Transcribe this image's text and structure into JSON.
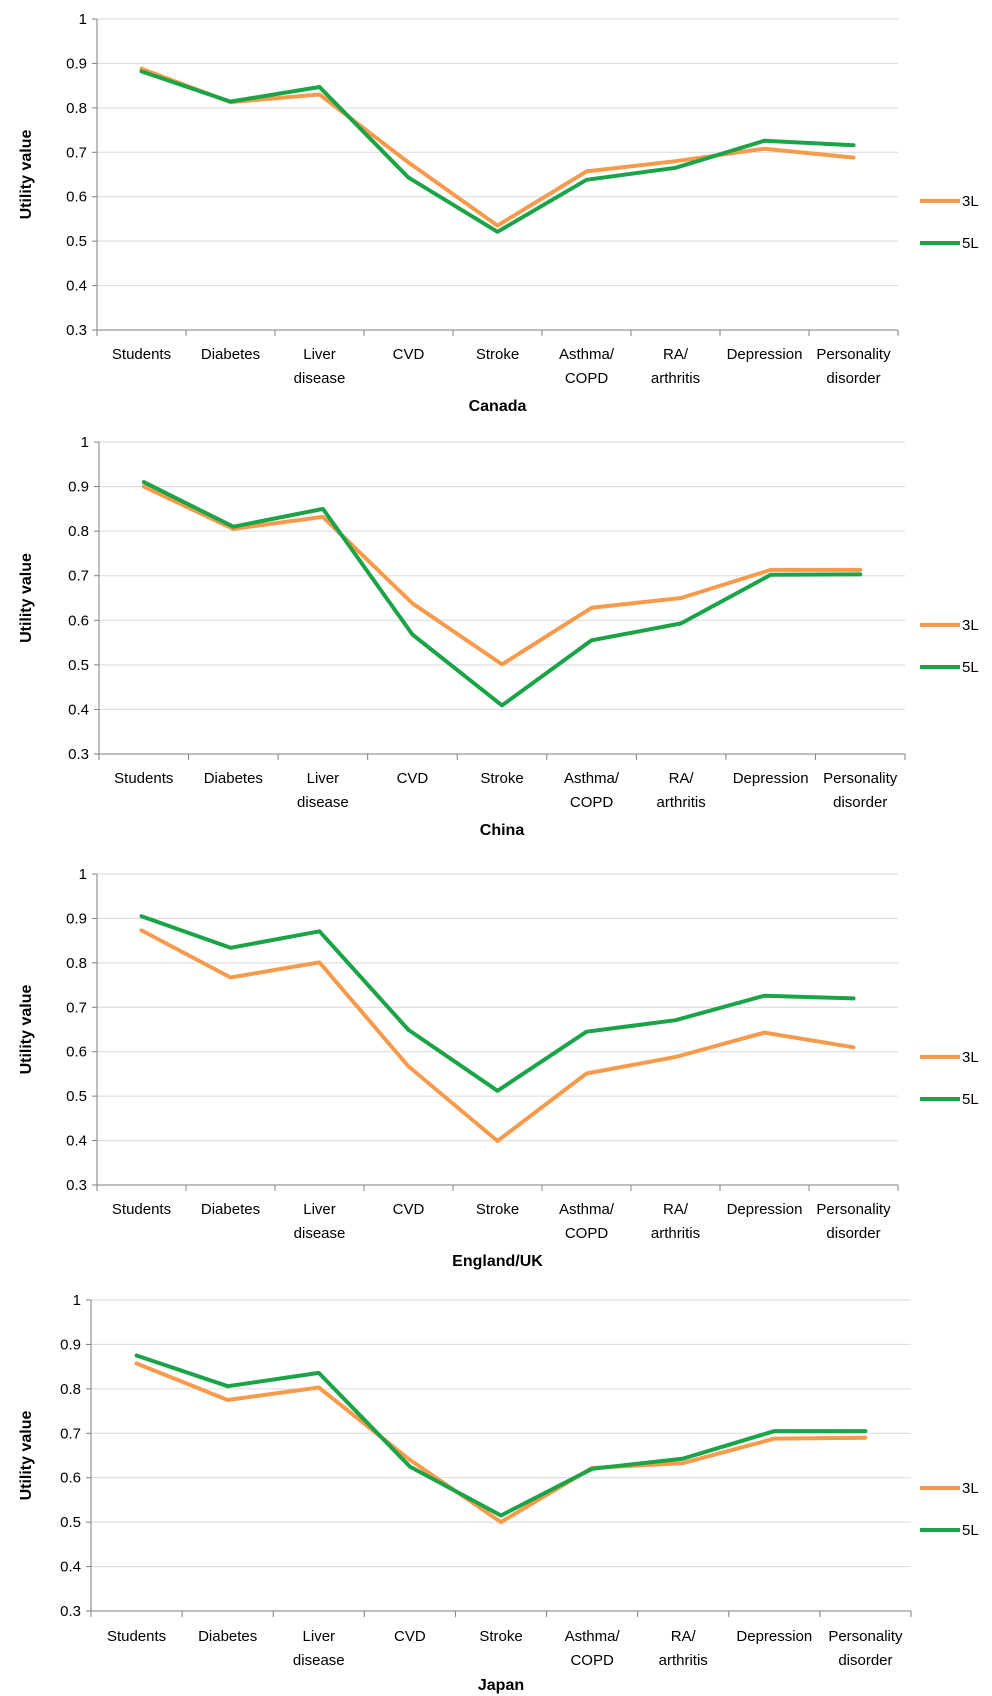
{
  "colors": {
    "3L": "#f79a4b",
    "5L": "#1aa447",
    "grid": "#d9d9d9",
    "axis": "#7f7f7f"
  },
  "chart_data": [
    {
      "type": "line",
      "title": "",
      "xlabel": "Canada",
      "ylabel": "Utility value",
      "categories": [
        [
          "Students"
        ],
        [
          "Diabetes"
        ],
        [
          "Liver",
          "disease"
        ],
        [
          "CVD"
        ],
        [
          "Stroke"
        ],
        [
          "Asthma/",
          "COPD"
        ],
        [
          "RA/",
          "arthritis"
        ],
        [
          "Depression"
        ],
        [
          "Personality",
          "disorder"
        ]
      ],
      "ylim": [
        0.3,
        1
      ],
      "yticks": [
        "0.3",
        "0.4",
        "0.5",
        "0.6",
        "0.7",
        "0.8",
        "0.9",
        "1"
      ],
      "grid": true,
      "legend": "right",
      "series": [
        {
          "name": "3L",
          "values": [
            0.888,
            0.813,
            0.83,
            0.677,
            0.535,
            0.657,
            0.68,
            0.708,
            0.688
          ]
        },
        {
          "name": "5L",
          "values": [
            0.882,
            0.814,
            0.847,
            0.643,
            0.521,
            0.638,
            0.665,
            0.726,
            0.716
          ]
        }
      ]
    },
    {
      "type": "line",
      "title": "",
      "xlabel": "China",
      "ylabel": "Utility value",
      "categories": [
        [
          "Students"
        ],
        [
          "Diabetes"
        ],
        [
          "Liver",
          "disease"
        ],
        [
          "CVD"
        ],
        [
          "Stroke"
        ],
        [
          "Asthma/",
          "COPD"
        ],
        [
          "RA/",
          "arthritis"
        ],
        [
          "Depression"
        ],
        [
          "Personality",
          "disorder"
        ]
      ],
      "ylim": [
        0.3,
        1
      ],
      "yticks": [
        "0.3",
        "0.4",
        "0.5",
        "0.6",
        "0.7",
        "0.8",
        "0.9",
        "1"
      ],
      "grid": true,
      "legend": "right",
      "series": [
        {
          "name": "3L",
          "values": [
            0.9,
            0.805,
            0.832,
            0.638,
            0.501,
            0.628,
            0.65,
            0.713,
            0.713
          ]
        },
        {
          "name": "5L",
          "values": [
            0.91,
            0.81,
            0.85,
            0.568,
            0.409,
            0.555,
            0.593,
            0.702,
            0.703
          ]
        }
      ]
    },
    {
      "type": "line",
      "title": "",
      "xlabel": "England/UK",
      "ylabel": "Utility value",
      "categories": [
        [
          "Students"
        ],
        [
          "Diabetes"
        ],
        [
          "Liver",
          "disease"
        ],
        [
          "CVD"
        ],
        [
          "Stroke"
        ],
        [
          "Asthma/",
          "COPD"
        ],
        [
          "RA/",
          "arthritis"
        ],
        [
          "Depression"
        ],
        [
          "Personality",
          "disorder"
        ]
      ],
      "ylim": [
        0.3,
        1
      ],
      "yticks": [
        "0.3",
        "0.4",
        "0.5",
        "0.6",
        "0.7",
        "0.8",
        "0.9",
        "1"
      ],
      "grid": true,
      "legend": "right",
      "series": [
        {
          "name": "3L",
          "values": [
            0.873,
            0.767,
            0.801,
            0.567,
            0.399,
            0.551,
            0.588,
            0.643,
            0.61
          ]
        },
        {
          "name": "5L",
          "values": [
            0.905,
            0.834,
            0.871,
            0.649,
            0.512,
            0.645,
            0.671,
            0.726,
            0.72
          ]
        }
      ]
    },
    {
      "type": "line",
      "title": "",
      "xlabel": "Japan",
      "ylabel": "Utility value",
      "categories": [
        [
          "Students"
        ],
        [
          "Diabetes"
        ],
        [
          "Liver",
          "disease"
        ],
        [
          "CVD"
        ],
        [
          "Stroke"
        ],
        [
          "Asthma/",
          "COPD"
        ],
        [
          "RA/",
          "arthritis"
        ],
        [
          "Depression"
        ],
        [
          "Personality",
          "disorder"
        ]
      ],
      "ylim": [
        0.3,
        1
      ],
      "yticks": [
        "0.3",
        "0.4",
        "0.5",
        "0.6",
        "0.7",
        "0.8",
        "0.9",
        "1"
      ],
      "grid": true,
      "legend": "right",
      "series": [
        {
          "name": "3L",
          "values": [
            0.857,
            0.775,
            0.803,
            0.64,
            0.5,
            0.622,
            0.633,
            0.688,
            0.69
          ]
        },
        {
          "name": "5L",
          "values": [
            0.875,
            0.806,
            0.836,
            0.625,
            0.515,
            0.62,
            0.643,
            0.705,
            0.705
          ]
        }
      ]
    }
  ]
}
